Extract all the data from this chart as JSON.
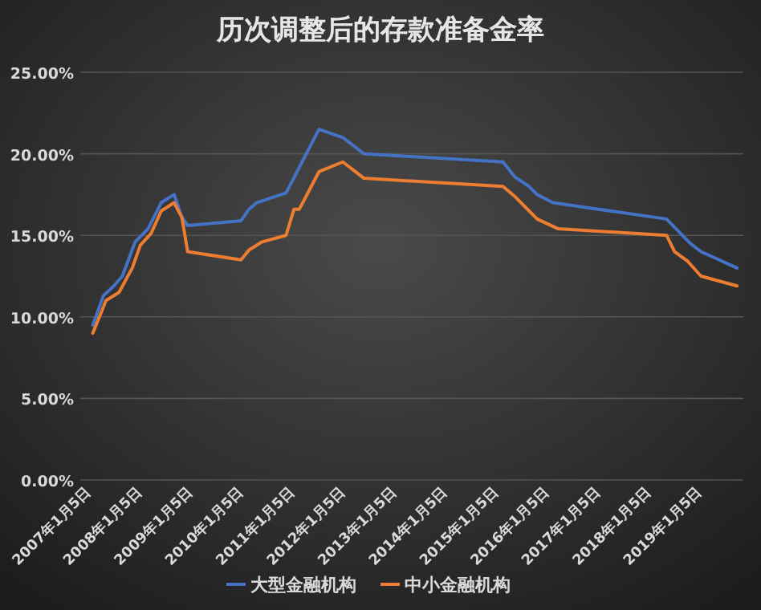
{
  "chart_data": {
    "type": "line",
    "title": "历次调整后的存款准备金率",
    "series": [
      {
        "name": "大型金融机构",
        "color": "#4472c4",
        "x": [
          "2007-01-15",
          "2007-04-01",
          "2007-06-15",
          "2007-08-15",
          "2007-11-15",
          "2008-02-15",
          "2008-05-20",
          "2008-08-20",
          "2008-10-15",
          "2008-11-25",
          "2009-12-13",
          "2010-02-08",
          "2010-04-04",
          "2010-11-01",
          "2011-01-07",
          "2011-06-25",
          "2011-12-13",
          "2012-05-13",
          "2015-02-04",
          "2015-04-28",
          "2015-08-10",
          "2015-10-07",
          "2016-01-28",
          "2018-04-22",
          "2018-10-10",
          "2018-12-25",
          "2019-09-10"
        ],
        "values": [
          9.5,
          11.3,
          11.9,
          12.5,
          14.6,
          15.4,
          17,
          17.5,
          16.1,
          15.6,
          15.9,
          16.6,
          17,
          17.6,
          18.7,
          21.5,
          21,
          20,
          19.5,
          18.6,
          18,
          17.5,
          17,
          16,
          14.5,
          14,
          13
        ]
      },
      {
        "name": "中小金融机构",
        "color": "#ed7d31",
        "x": [
          "2007-01-15",
          "2007-03-13",
          "2007-04-19",
          "2007-07-22",
          "2007-10-25",
          "2007-12-22",
          "2008-03-07",
          "2008-05-20",
          "2008-08-20",
          "2008-10-15",
          "2008-11-25",
          "2009-12-13",
          "2010-02-08",
          "2010-05-13",
          "2010-11-01",
          "2010-12-28",
          "2011-02-04",
          "2011-06-25",
          "2011-12-13",
          "2012-05-13",
          "2015-02-04",
          "2015-04-28",
          "2015-10-07",
          "2016-03-07",
          "2018-04-22",
          "2018-06-19",
          "2018-09-22",
          "2018-12-25",
          "2019-09-10"
        ],
        "values": [
          9.0,
          10.2,
          11,
          11.5,
          13,
          14.4,
          15.1,
          16.5,
          17,
          16.1,
          14,
          13.5,
          14.1,
          14.6,
          15,
          16.6,
          16.6,
          18.9,
          19.5,
          18.5,
          18,
          17.4,
          16,
          15.4,
          15,
          14,
          13.4,
          12.5,
          11.9
        ]
      }
    ],
    "xlim": [
      "2006-10-17",
      "2019-10-25"
    ],
    "xticks": [
      {
        "value": "2007-01-05",
        "label": "2007年1月5日"
      },
      {
        "value": "2008-01-05",
        "label": "2008年1月5日"
      },
      {
        "value": "2009-01-05",
        "label": "2009年1月5日"
      },
      {
        "value": "2010-01-05",
        "label": "2010年1月5日"
      },
      {
        "value": "2011-01-05",
        "label": "2011年1月5日"
      },
      {
        "value": "2012-01-05",
        "label": "2012年1月5日"
      },
      {
        "value": "2013-01-05",
        "label": "2013年1月5日"
      },
      {
        "value": "2014-01-05",
        "label": "2014年1月5日"
      },
      {
        "value": "2015-01-05",
        "label": "2015年1月5日"
      },
      {
        "value": "2016-01-05",
        "label": "2016年1月5日"
      },
      {
        "value": "2017-01-05",
        "label": "2017年1月5日"
      },
      {
        "value": "2018-01-05",
        "label": "2018年1月5日"
      },
      {
        "value": "2019-01-05",
        "label": "2019年1月5日"
      }
    ],
    "ylim": [
      0,
      25
    ],
    "yticks": [
      {
        "value": 0,
        "label": "0.00%"
      },
      {
        "value": 5,
        "label": "5.00%"
      },
      {
        "value": 10,
        "label": "10.00%"
      },
      {
        "value": 15,
        "label": "15.00%"
      },
      {
        "value": 20,
        "label": "20.00%"
      },
      {
        "value": 25,
        "label": "25.00%"
      }
    ],
    "grid": "y",
    "legend": "bottom"
  }
}
